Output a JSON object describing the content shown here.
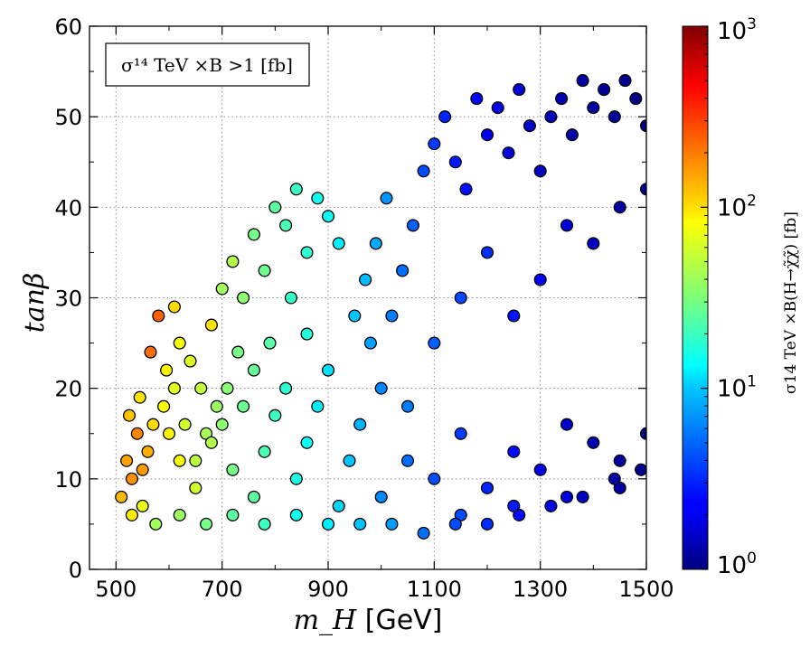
{
  "chart_data": {
    "type": "scatter",
    "xlabel": "m_H",
    "xlabel_unit": "[GeV]",
    "ylabel": "tanβ",
    "xlim": [
      450,
      1500
    ],
    "ylim": [
      0,
      60
    ],
    "xticks": [
      500,
      700,
      900,
      1100,
      1300,
      1500
    ],
    "yticks": [
      0,
      10,
      20,
      30,
      40,
      50,
      60
    ],
    "grid": true,
    "legend_text": "σ¹⁴ TeV ×B >1 [fb]",
    "legend_position": "top-left",
    "colorbar": {
      "label": "σ14 TeV ×B(H→χ̃χ̃) [fb]",
      "scale": "log",
      "range": [
        1,
        1000
      ],
      "ticks": [
        {
          "base": "10",
          "exp": "0",
          "value": 1
        },
        {
          "base": "10",
          "exp": "1",
          "value": 10
        },
        {
          "base": "10",
          "exp": "2",
          "value": 100
        },
        {
          "base": "10",
          "exp": "3",
          "value": 1000
        }
      ],
      "colormap": "jet"
    },
    "points": [
      [
        520,
        12,
        140
      ],
      [
        530,
        10,
        160
      ],
      [
        510,
        8,
        120
      ],
      [
        540,
        15,
        170
      ],
      [
        550,
        11,
        150
      ],
      [
        560,
        13,
        130
      ],
      [
        525,
        17,
        110
      ],
      [
        545,
        19,
        90
      ],
      [
        565,
        24,
        200
      ],
      [
        580,
        28,
        220
      ],
      [
        595,
        22,
        80
      ],
      [
        610,
        29,
        95
      ],
      [
        620,
        25,
        70
      ],
      [
        640,
        23,
        60
      ],
      [
        660,
        20,
        50
      ],
      [
        680,
        27,
        90
      ],
      [
        700,
        31,
        40
      ],
      [
        720,
        34,
        45
      ],
      [
        740,
        30,
        35
      ],
      [
        760,
        37,
        30
      ],
      [
        780,
        33,
        28
      ],
      [
        800,
        40,
        25
      ],
      [
        820,
        38,
        22
      ],
      [
        840,
        42,
        20
      ],
      [
        860,
        35,
        18
      ],
      [
        880,
        41,
        15
      ],
      [
        900,
        39,
        14
      ],
      [
        920,
        36,
        12
      ],
      [
        600,
        15,
        80
      ],
      [
        620,
        12,
        70
      ],
      [
        650,
        9,
        55
      ],
      [
        680,
        14,
        45
      ],
      [
        700,
        16,
        35
      ],
      [
        720,
        11,
        30
      ],
      [
        740,
        18,
        28
      ],
      [
        760,
        8,
        25
      ],
      [
        780,
        13,
        22
      ],
      [
        800,
        17,
        20
      ],
      [
        820,
        20,
        18
      ],
      [
        840,
        10,
        16
      ],
      [
        860,
        14,
        14
      ],
      [
        880,
        18,
        12
      ],
      [
        900,
        22,
        11
      ],
      [
        920,
        7,
        10
      ],
      [
        940,
        12,
        9
      ],
      [
        960,
        16,
        8
      ],
      [
        980,
        25,
        7
      ],
      [
        1000,
        20,
        6
      ],
      [
        1020,
        28,
        5.5
      ],
      [
        1040,
        33,
        5
      ],
      [
        1060,
        38,
        4.5
      ],
      [
        1080,
        44,
        4
      ],
      [
        1100,
        47,
        3.5
      ],
      [
        1120,
        50,
        3
      ],
      [
        1140,
        45,
        2.8
      ],
      [
        1160,
        42,
        2.6
      ],
      [
        1180,
        52,
        2.4
      ],
      [
        1200,
        48,
        2.2
      ],
      [
        1220,
        51,
        2
      ],
      [
        1240,
        46,
        1.9
      ],
      [
        1260,
        53,
        1.8
      ],
      [
        1280,
        49,
        1.7
      ],
      [
        1300,
        44,
        1.6
      ],
      [
        1320,
        50,
        1.5
      ],
      [
        1340,
        52,
        1.4
      ],
      [
        1360,
        48,
        1.35
      ],
      [
        1380,
        54,
        1.3
      ],
      [
        1400,
        51,
        1.25
      ],
      [
        1420,
        53,
        1.2
      ],
      [
        1440,
        50,
        1.15
      ],
      [
        1460,
        54,
        1.1
      ],
      [
        1480,
        52,
        1.05
      ],
      [
        1500,
        49,
        1.02
      ],
      [
        1000,
        8,
        6
      ],
      [
        1050,
        12,
        5
      ],
      [
        1100,
        10,
        4
      ],
      [
        1150,
        15,
        3.5
      ],
      [
        1200,
        9,
        3
      ],
      [
        1250,
        13,
        2.5
      ],
      [
        1300,
        11,
        2
      ],
      [
        1350,
        16,
        1.7
      ],
      [
        1400,
        14,
        1.4
      ],
      [
        1450,
        12,
        1.2
      ],
      [
        1500,
        15,
        1.1
      ],
      [
        1100,
        25,
        4.5
      ],
      [
        1150,
        30,
        3.8
      ],
      [
        1200,
        35,
        3.2
      ],
      [
        1250,
        28,
        2.7
      ],
      [
        1300,
        32,
        2.2
      ],
      [
        1350,
        38,
        1.9
      ],
      [
        1400,
        36,
        1.6
      ],
      [
        1450,
        40,
        1.3
      ],
      [
        1500,
        42,
        1.1
      ],
      [
        1150,
        6,
        4
      ],
      [
        1250,
        7,
        2.8
      ],
      [
        1350,
        8,
        1.9
      ],
      [
        1450,
        9,
        1.3
      ],
      [
        1050,
        18,
        5.5
      ],
      [
        950,
        28,
        9
      ],
      [
        970,
        32,
        8.5
      ],
      [
        990,
        36,
        7.5
      ],
      [
        1010,
        41,
        6.5
      ],
      [
        860,
        26,
        17
      ],
      [
        830,
        30,
        19
      ],
      [
        790,
        25,
        24
      ],
      [
        760,
        22,
        27
      ],
      [
        730,
        24,
        30
      ],
      [
        710,
        20,
        34
      ],
      [
        690,
        18,
        38
      ],
      [
        670,
        15,
        42
      ],
      [
        650,
        12,
        48
      ],
      [
        630,
        16,
        55
      ],
      [
        610,
        20,
        62
      ],
      [
        590,
        18,
        75
      ],
      [
        570,
        16,
        95
      ],
      [
        550,
        7,
        65
      ],
      [
        530,
        6,
        85
      ],
      [
        575,
        5,
        40
      ],
      [
        620,
        6,
        38
      ],
      [
        670,
        5,
        30
      ],
      [
        720,
        6,
        25
      ],
      [
        780,
        5,
        20
      ],
      [
        840,
        6,
        15
      ],
      [
        900,
        5,
        12
      ],
      [
        960,
        5,
        9
      ],
      [
        1020,
        5,
        7
      ],
      [
        1080,
        4,
        5
      ],
      [
        1140,
        5,
        4
      ],
      [
        1200,
        5,
        3.2
      ],
      [
        1260,
        6,
        2.5
      ],
      [
        1320,
        7,
        2
      ],
      [
        1380,
        8,
        1.6
      ],
      [
        1440,
        10,
        1.3
      ],
      [
        1490,
        11,
        1.1
      ]
    ]
  }
}
